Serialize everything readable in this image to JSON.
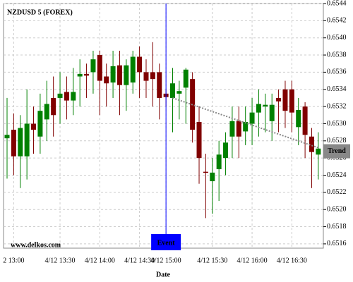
{
  "chart_data": {
    "type": "candlestick",
    "title": "NZDUSD 5 (FOREX)",
    "watermark": "www.delkos.com",
    "xlabel": "Date",
    "categories": [
      null,
      "2 13:00",
      null,
      null,
      null,
      null,
      null,
      null,
      "4/12 13:30",
      null,
      null,
      null,
      null,
      null,
      "4/12 14:00",
      null,
      null,
      null,
      null,
      null,
      "4/12 14:30",
      null,
      null,
      null,
      "4/12 15:00",
      null,
      null,
      null,
      null,
      null,
      null,
      "4/12 15:30",
      null,
      null,
      null,
      null,
      null,
      "4/12 16:00",
      null,
      null,
      null,
      null,
      null,
      "4/12 16:30",
      null,
      null,
      null,
      null
    ],
    "open": [
      0.65283,
      0.65293,
      0.65262,
      0.65262,
      0.653,
      0.65285,
      0.65305,
      0.6533,
      0.6533,
      0.65337,
      0.65327,
      0.65355,
      0.65358,
      0.6536,
      0.6538,
      0.65355,
      0.65348,
      0.65368,
      0.65345,
      0.65348,
      0.65378,
      0.6536,
      0.6536,
      0.6536,
      0.65335,
      0.6533,
      0.65335,
      0.65342,
      0.65352,
      0.65302,
      0.65244,
      0.65233,
      0.65247,
      0.6526,
      0.65285,
      0.65303,
      0.65291,
      0.653,
      0.65313,
      0.6532,
      0.65303,
      0.6533,
      0.6534,
      0.6534,
      0.65296,
      0.6532,
      0.65285,
      0.65264
    ],
    "high": [
      0.6533,
      0.65312,
      0.6531,
      0.6534,
      0.6532,
      0.65335,
      0.6535,
      0.65355,
      0.6536,
      0.65355,
      0.65365,
      0.65375,
      0.6537,
      0.65385,
      0.65385,
      0.6537,
      0.65385,
      0.65385,
      0.65375,
      0.65385,
      0.6539,
      0.65375,
      0.65395,
      0.6537,
      0.6534,
      0.65365,
      0.6535,
      0.65365,
      0.6536,
      0.6532,
      0.65265,
      0.6526,
      0.6528,
      0.6529,
      0.6532,
      0.6532,
      0.6532,
      0.6533,
      0.6534,
      0.65335,
      0.65335,
      0.6534,
      0.6535,
      0.6535,
      0.6533,
      0.65325,
      0.65295,
      0.6529
    ],
    "low": [
      0.65236,
      0.6524,
      0.65225,
      0.65235,
      0.65265,
      0.65265,
      0.6528,
      0.65285,
      0.653,
      0.65305,
      0.6531,
      0.6532,
      0.6533,
      0.65335,
      0.6531,
      0.6532,
      0.6533,
      0.6531,
      0.65315,
      0.65335,
      0.6533,
      0.6533,
      0.6532,
      0.65305,
      0.6532,
      0.6529,
      0.65305,
      0.653,
      0.65278,
      0.6523,
      0.6519,
      0.65195,
      0.6521,
      0.6524,
      0.6526,
      0.6526,
      0.65275,
      0.65275,
      0.65285,
      0.6529,
      0.6528,
      0.6529,
      0.65295,
      0.6529,
      0.65275,
      0.6526,
      0.65225,
      0.65235
    ],
    "close": [
      0.65287,
      0.65262,
      0.65295,
      0.653,
      0.65293,
      0.65315,
      0.65323,
      0.6531,
      0.65335,
      0.65327,
      0.65337,
      0.65358,
      0.65356,
      0.65375,
      0.6535,
      0.65347,
      0.65367,
      0.65345,
      0.65368,
      0.65378,
      0.6536,
      0.6535,
      0.65352,
      0.6533,
      0.65331,
      0.65347,
      0.65338,
      0.65363,
      0.65293,
      0.6526,
      0.65243,
      0.65243,
      0.65264,
      0.65278,
      0.65303,
      0.65285,
      0.65302,
      0.65313,
      0.65323,
      0.65322,
      0.65322,
      0.65326,
      0.65315,
      0.65313,
      0.65316,
      0.65287,
      0.65267,
      0.65271
    ],
    "up_color": "#008000",
    "down_color": "#800000",
    "event": {
      "label": "Event",
      "at": "4/12 15:00",
      "color": "#0000ff"
    },
    "trend": {
      "label": "Trend",
      "color": "#888888",
      "x_index": [
        25,
        47
      ],
      "values": [
        0.6533,
        0.65272
      ]
    },
    "ylim": [
      0.65155,
      0.6544
    ],
    "yticks": [
      0.6516,
      0.6518,
      {
        "value": 0.652,
        "label": "0.6520"
      },
      0.6522,
      0.6524,
      0.6526,
      0.6528,
      {
        "value": 0.653,
        "label": "0.6530"
      },
      0.6532,
      0.6534,
      0.6536,
      0.6538,
      {
        "value": 0.654,
        "label": "0.6540"
      },
      0.6542,
      0.6544
    ],
    "grid": true
  }
}
